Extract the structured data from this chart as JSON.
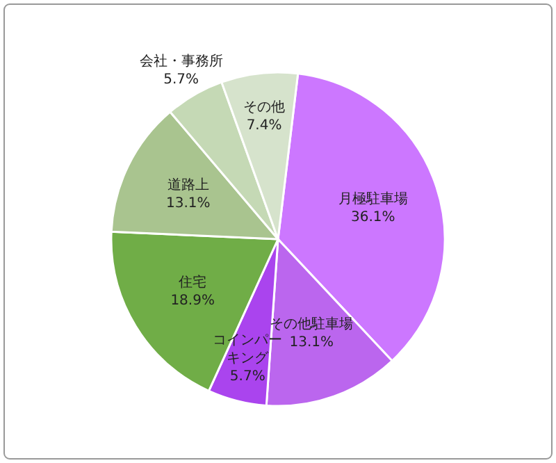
{
  "chart_data": {
    "type": "pie",
    "categories": [
      "月極駐車場",
      "その他駐車場",
      "コインパーキング",
      "住宅",
      "道路上",
      "会社・事務所",
      "その他"
    ],
    "values": [
      36.1,
      13.1,
      5.7,
      18.9,
      13.1,
      5.7,
      7.4
    ],
    "value_labels": [
      "36.1%",
      "13.1%",
      "5.7%",
      "18.9%",
      "13.1%",
      "5.7%",
      "7.4%"
    ],
    "colors": [
      "#cc77ff",
      "#bb66ee",
      "#aa44ee",
      "#70ad47",
      "#a9c48f",
      "#c5d9b5",
      "#d6e3cc"
    ]
  }
}
